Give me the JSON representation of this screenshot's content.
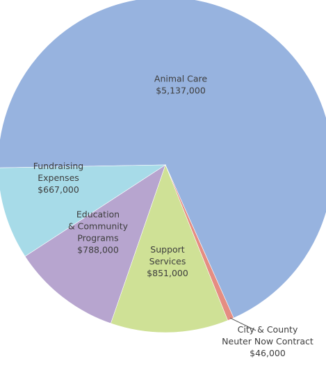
{
  "chart_data": {
    "type": "pie",
    "title": "",
    "slices": [
      {
        "label_lines": [
          "Animal Care"
        ],
        "value": 5137000,
        "value_label": "$5,137,000",
        "color": "#97b3df"
      },
      {
        "label_lines": [
          "City & County",
          "Neuter Now Contract"
        ],
        "value": 46000,
        "value_label": "$46,000",
        "color": "#e58d82"
      },
      {
        "label_lines": [
          "Support",
          "Services"
        ],
        "value": 851000,
        "value_label": "$851,000",
        "color": "#cfe196"
      },
      {
        "label_lines": [
          "Education",
          "& Community",
          "Programs"
        ],
        "value": 788000,
        "value_label": "$788,000",
        "color": "#b7a5cf"
      },
      {
        "label_lines": [
          "Fundraising",
          "Expenses"
        ],
        "value": 667000,
        "value_label": "$667,000",
        "color": "#a7dbe8"
      }
    ],
    "legend": "none"
  }
}
